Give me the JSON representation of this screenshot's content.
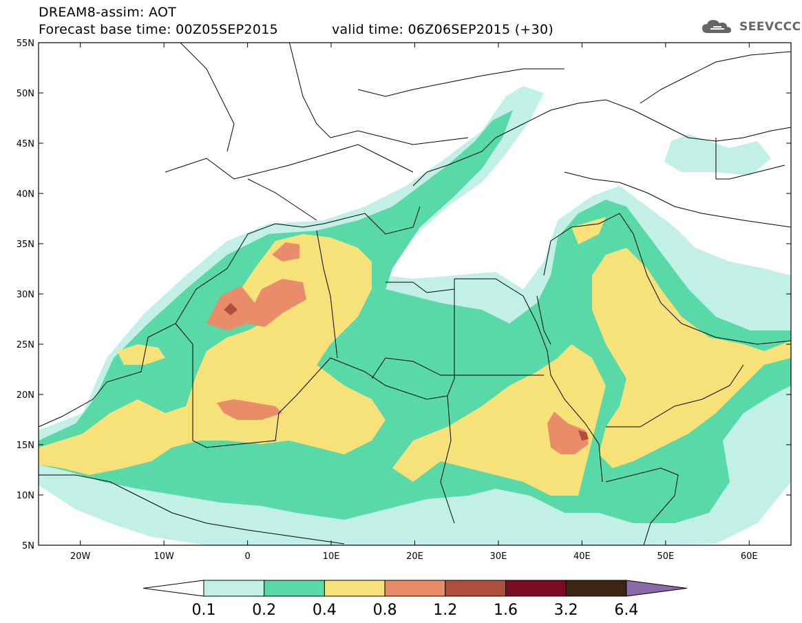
{
  "header": {
    "line1": "DREAM8-assim: AOT",
    "line2": "Forecast base time: 00Z05SEP2015",
    "valid": "valid time: 06Z06SEP2015 (+30)"
  },
  "logo": {
    "text": "SEEVCCC",
    "icon": "cloud-icon"
  },
  "map": {
    "lon_range": [
      -25,
      65
    ],
    "lat_range": [
      5,
      55
    ],
    "lat_ticks": [
      "55N",
      "50N",
      "45N",
      "40N",
      "35N",
      "30N",
      "25N",
      "20N",
      "15N",
      "10N",
      "5N"
    ],
    "lon_ticks": [
      "20W",
      "10W",
      "0",
      "10E",
      "20E",
      "30E",
      "40E",
      "50E",
      "60E"
    ]
  },
  "colorbar": {
    "labels": [
      "0.1",
      "0.2",
      "0.4",
      "0.8",
      "1.2",
      "1.6",
      "3.2",
      "6.4"
    ],
    "colors": [
      "#ffffff",
      "#c2f0e6",
      "#5ad9a8",
      "#f7e27a",
      "#e88c6a",
      "#b04e3e",
      "#7a0b22",
      "#3e2413",
      "#8a6aa8"
    ]
  },
  "palette": {
    "c01": "#c2f0e6",
    "c02": "#5ad9a8",
    "c04": "#f7e27a",
    "c08": "#e88c6a",
    "c12": "#b04e3e",
    "border": "#000000"
  }
}
